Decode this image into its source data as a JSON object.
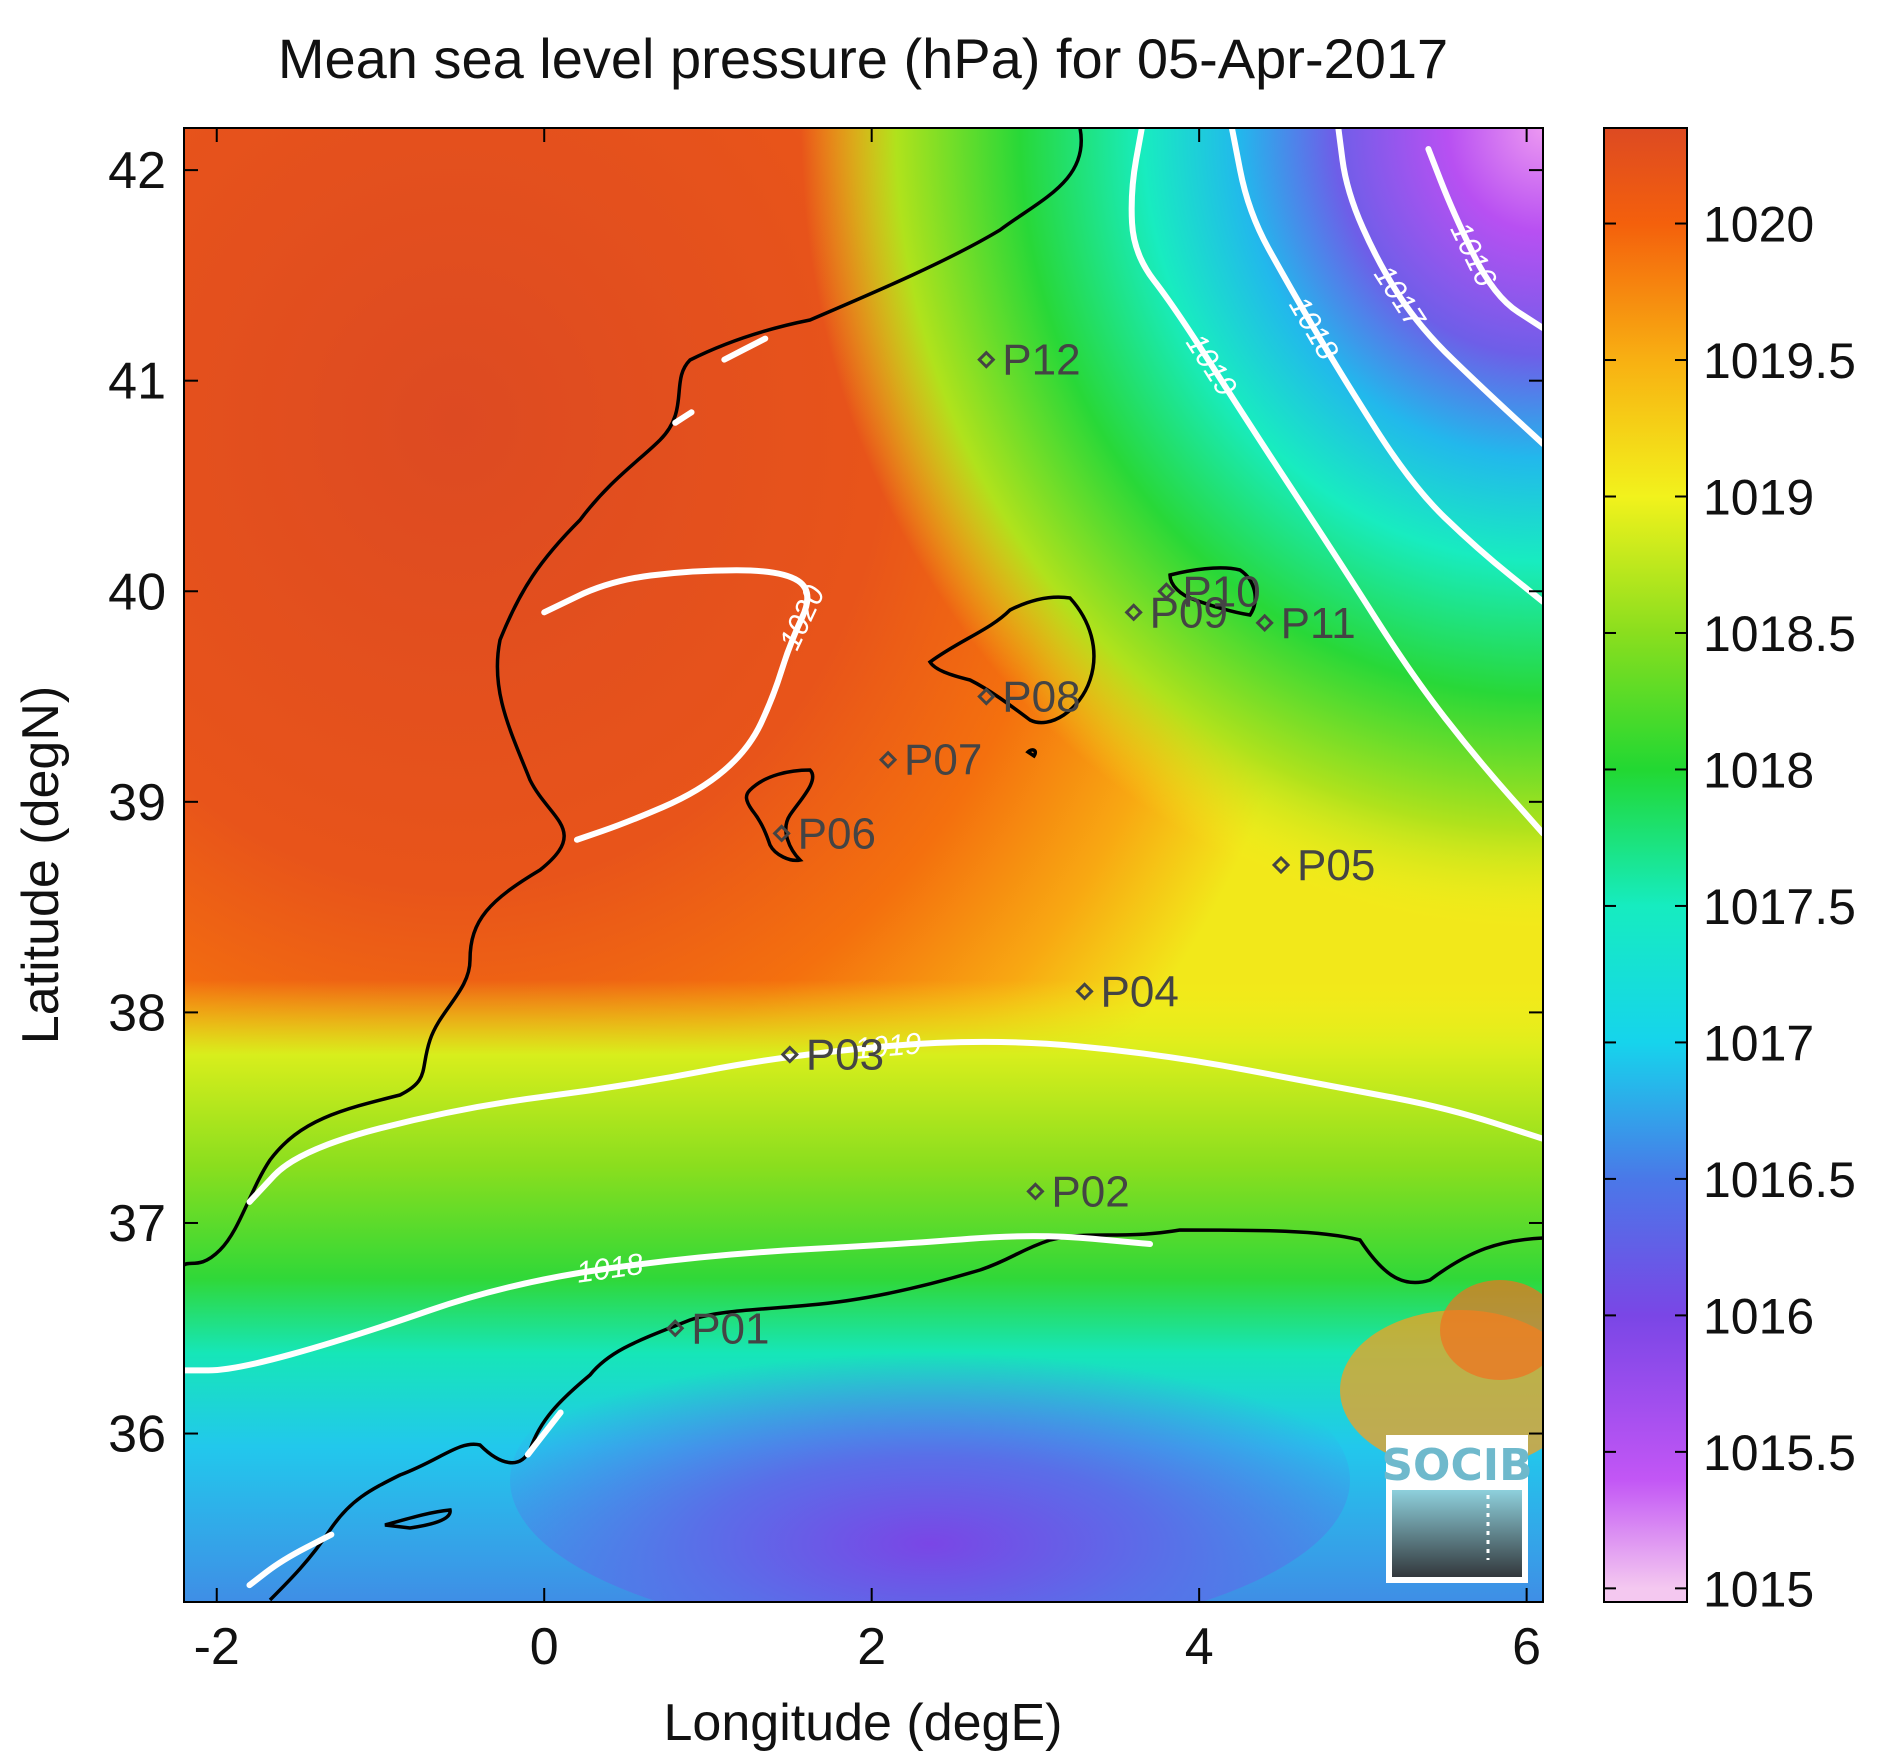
{
  "title": "Mean sea level pressure (hPa) for 05-Apr-2017",
  "axes": {
    "xlabel": "Longitude (degE)",
    "ylabel": "Latitude (degN)",
    "xlim": [
      -2.2,
      6.1
    ],
    "ylim": [
      35.2,
      42.2
    ],
    "xticks": [
      -2,
      0,
      2,
      4,
      6
    ],
    "yticks": [
      36,
      37,
      38,
      39,
      40,
      41,
      42
    ]
  },
  "colorbar": {
    "range": [
      1014.95,
      1020.35
    ],
    "ticks": [
      1015,
      1015.5,
      1016,
      1016.5,
      1017,
      1017.5,
      1018,
      1018.5,
      1019,
      1019.5,
      1020
    ],
    "tick_labels": [
      "1015",
      "1015.5",
      "1016",
      "1016.5",
      "1017",
      "1017.5",
      "1018",
      "1018.5",
      "1019",
      "1019.5",
      "1020"
    ],
    "colormap": [
      {
        "value": 1015.0,
        "color": "#f4c8f0"
      },
      {
        "value": 1015.4,
        "color": "#c256f5"
      },
      {
        "value": 1016.0,
        "color": "#7a46e6"
      },
      {
        "value": 1016.5,
        "color": "#4a78e8"
      },
      {
        "value": 1017.0,
        "color": "#16d4ec"
      },
      {
        "value": 1017.5,
        "color": "#16ecc0"
      },
      {
        "value": 1018.0,
        "color": "#22d832"
      },
      {
        "value": 1018.5,
        "color": "#8ade1e"
      },
      {
        "value": 1019.0,
        "color": "#f2f21c"
      },
      {
        "value": 1019.5,
        "color": "#f8b012"
      },
      {
        "value": 1020.0,
        "color": "#f4600c"
      },
      {
        "value": 1020.35,
        "color": "#dd4a22"
      }
    ]
  },
  "chart_data": {
    "type": "heatmap",
    "title": "Mean sea level pressure (hPa) for 05-Apr-2017",
    "xlabel": "Longitude (degE)",
    "ylabel": "Latitude (degN)",
    "xlim": [
      -2.2,
      6.1
    ],
    "ylim": [
      35.2,
      42.2
    ],
    "units": "hPa",
    "stations": [
      {
        "name": "P01",
        "lon": 0.8,
        "lat": 36.5
      },
      {
        "name": "P02",
        "lon": 3.0,
        "lat": 37.15
      },
      {
        "name": "P03",
        "lon": 1.5,
        "lat": 37.8
      },
      {
        "name": "P04",
        "lon": 3.3,
        "lat": 38.1
      },
      {
        "name": "P05",
        "lon": 4.5,
        "lat": 38.7
      },
      {
        "name": "P06",
        "lon": 1.45,
        "lat": 38.85
      },
      {
        "name": "P07",
        "lon": 2.1,
        "lat": 39.2
      },
      {
        "name": "P08",
        "lon": 2.7,
        "lat": 39.5
      },
      {
        "name": "P09",
        "lon": 3.6,
        "lat": 39.9
      },
      {
        "name": "P10",
        "lon": 3.8,
        "lat": 40.0
      },
      {
        "name": "P11",
        "lon": 4.4,
        "lat": 39.85
      },
      {
        "name": "P12",
        "lon": 2.7,
        "lat": 41.1
      }
    ],
    "contours": [
      {
        "level": 1016,
        "label": "1016",
        "points": [
          [
            5.4,
            42.1
          ],
          [
            5.55,
            41.8
          ],
          [
            5.8,
            41.4
          ],
          [
            6.1,
            41.25
          ]
        ]
      },
      {
        "level": 1017,
        "label": "1017",
        "points": [
          [
            4.85,
            42.2
          ],
          [
            4.9,
            41.9
          ],
          [
            5.1,
            41.55
          ],
          [
            5.35,
            41.25
          ],
          [
            5.75,
            40.95
          ],
          [
            6.1,
            40.7
          ]
        ]
      },
      {
        "level": 1018,
        "label": "1018",
        "points": [
          [
            4.2,
            42.2
          ],
          [
            4.3,
            41.8
          ],
          [
            4.55,
            41.45
          ],
          [
            4.85,
            41.05
          ],
          [
            5.3,
            40.5
          ],
          [
            5.7,
            40.2
          ],
          [
            6.1,
            39.95
          ]
        ]
      },
      {
        "level": 1019,
        "label": "1019",
        "points": [
          [
            3.65,
            42.2
          ],
          [
            3.58,
            41.9
          ],
          [
            3.6,
            41.6
          ],
          [
            3.85,
            41.35
          ],
          [
            4.3,
            40.8
          ],
          [
            4.85,
            40.15
          ],
          [
            5.3,
            39.6
          ],
          [
            5.7,
            39.2
          ],
          [
            6.1,
            38.85
          ]
        ]
      },
      {
        "level": 1019,
        "label": "1019",
        "points": [
          [
            -1.8,
            37.1
          ],
          [
            -1.5,
            37.35
          ],
          [
            -0.5,
            37.55
          ],
          [
            0.5,
            37.65
          ],
          [
            1.5,
            37.8
          ],
          [
            2.7,
            37.88
          ],
          [
            3.8,
            37.8
          ],
          [
            4.8,
            37.65
          ],
          [
            5.5,
            37.55
          ],
          [
            6.1,
            37.4
          ]
        ]
      },
      {
        "level": 1018,
        "label": "1018",
        "points": [
          [
            -2.2,
            36.3
          ],
          [
            -1.9,
            36.3
          ],
          [
            -1.2,
            36.45
          ],
          [
            -0.2,
            36.72
          ],
          [
            1.0,
            36.85
          ],
          [
            2.2,
            36.9
          ],
          [
            3.0,
            36.95
          ],
          [
            3.7,
            36.9
          ]
        ]
      },
      {
        "level": 1020,
        "label": "1020",
        "points": [
          [
            0.0,
            39.9
          ],
          [
            0.4,
            40.05
          ],
          [
            0.9,
            40.1
          ],
          [
            1.45,
            40.1
          ],
          [
            1.65,
            40.0
          ],
          [
            1.5,
            39.75
          ],
          [
            1.4,
            39.5
          ],
          [
            1.25,
            39.25
          ],
          [
            0.95,
            39.05
          ],
          [
            0.5,
            38.9
          ],
          [
            0.2,
            38.82
          ]
        ]
      },
      {
        "level": 1020,
        "label": "",
        "points": [
          [
            1.1,
            41.1
          ],
          [
            1.35,
            41.2
          ]
        ]
      },
      {
        "level": 1020,
        "label": "",
        "points": [
          [
            0.8,
            40.8
          ],
          [
            0.9,
            40.85
          ]
        ]
      },
      {
        "level": 1018,
        "label": "",
        "points": [
          [
            -0.1,
            35.9
          ],
          [
            0.0,
            36.0
          ],
          [
            0.1,
            36.1
          ]
        ]
      },
      {
        "level": 1018,
        "label": "",
        "points": [
          [
            -1.8,
            35.28
          ],
          [
            -1.6,
            35.4
          ],
          [
            -1.3,
            35.52
          ]
        ]
      }
    ]
  },
  "logo": {
    "text": "SOCIB"
  }
}
